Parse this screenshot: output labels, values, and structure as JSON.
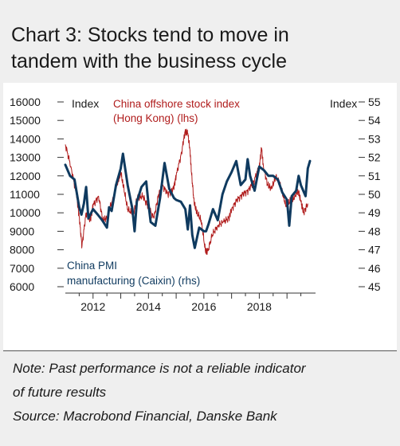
{
  "title_line1": "Chart 3: Stocks tend to move in",
  "title_line2": "tandem with the business cycle",
  "note_line1": "Note: Past performance is not a reliable indicator",
  "note_line2": "of future results",
  "source": "Source: Macrobond Financial, Danske Bank",
  "colors": {
    "stock": "#b01c1c",
    "pmi": "#0f3a5f",
    "background": "#efefef"
  },
  "chart_data": {
    "type": "line",
    "title": "",
    "left_axis_label": "Index",
    "right_axis_label": "Index",
    "left_ylim": [
      6000,
      16000
    ],
    "right_ylim": [
      45,
      55
    ],
    "left_ticks": [
      "16000",
      "15000",
      "14000",
      "13000",
      "12000",
      "11000",
      "10000",
      "9000",
      "8000",
      "7000",
      "6000"
    ],
    "right_ticks": [
      "55",
      "54",
      "53",
      "52",
      "51",
      "50",
      "49",
      "48",
      "47",
      "46",
      "45"
    ],
    "x_ticks": [
      "2012",
      "2014",
      "2016",
      "2018"
    ],
    "grid": false,
    "series": [
      {
        "name": "China offshore stock index (Hong Kong) (lhs)",
        "name_line1": "China offshore stock index",
        "name_line2": "(Hong Kong) (lhs)",
        "axis": "left",
        "x": [
          2011.0,
          2011.2,
          2011.4,
          2011.5,
          2011.6,
          2011.75,
          2011.9,
          2012.0,
          2012.2,
          2012.35,
          2012.5,
          2012.7,
          2012.9,
          2013.0,
          2013.1,
          2013.25,
          2013.45,
          2013.6,
          2013.8,
          2014.0,
          2014.2,
          2014.35,
          2014.5,
          2014.7,
          2014.9,
          2015.0,
          2015.2,
          2015.32,
          2015.42,
          2015.5,
          2015.55,
          2015.65,
          2015.75,
          2015.9,
          2016.05,
          2016.12,
          2016.3,
          2016.5,
          2016.7,
          2016.9,
          2017.0,
          2017.2,
          2017.4,
          2017.6,
          2017.8,
          2018.0,
          2018.08,
          2018.15,
          2018.3,
          2018.45,
          2018.6,
          2018.8,
          2018.95,
          2019.1,
          2019.25,
          2019.4,
          2019.5,
          2019.6,
          2019.75
        ],
        "y": [
          13700,
          12500,
          11000,
          9800,
          8200,
          10000,
          9600,
          10400,
          10900,
          9600,
          9700,
          10700,
          11700,
          12200,
          11400,
          10200,
          9900,
          10800,
          10900,
          10300,
          9700,
          10900,
          11500,
          11000,
          11300,
          12000,
          13300,
          14400,
          14300,
          13400,
          12200,
          10500,
          10000,
          9600,
          8000,
          7800,
          8800,
          9300,
          9500,
          9700,
          10200,
          10700,
          11000,
          11200,
          11700,
          12500,
          13500,
          12500,
          11500,
          11300,
          12000,
          11300,
          10400,
          10600,
          10800,
          11200,
          10600,
          10000,
          10500
        ]
      },
      {
        "name": "China PMI manufacturing (Caixin) (rhs)",
        "name_line1": "China PMI",
        "name_line2": "manufacturing (Caixin) (rhs)",
        "axis": "right",
        "x": [
          2011.0,
          2011.17,
          2011.33,
          2011.5,
          2011.58,
          2011.67,
          2011.75,
          2011.83,
          2012.0,
          2012.17,
          2012.33,
          2012.5,
          2012.58,
          2012.67,
          2012.83,
          2013.0,
          2013.08,
          2013.25,
          2013.42,
          2013.5,
          2013.58,
          2013.75,
          2013.92,
          2014.0,
          2014.08,
          2014.25,
          2014.42,
          2014.58,
          2014.75,
          2014.92,
          2015.0,
          2015.17,
          2015.33,
          2015.42,
          2015.5,
          2015.58,
          2015.67,
          2015.83,
          2016.0,
          2016.08,
          2016.17,
          2016.33,
          2016.5,
          2016.67,
          2016.83,
          2017.0,
          2017.17,
          2017.33,
          2017.5,
          2017.58,
          2017.67,
          2017.83,
          2018.0,
          2018.17,
          2018.33,
          2018.5,
          2018.67,
          2018.83,
          2019.0,
          2019.08,
          2019.17,
          2019.33,
          2019.42,
          2019.5,
          2019.67,
          2019.75,
          2019.83
        ],
        "y": [
          51.6,
          51.0,
          50.8,
          49.3,
          48.9,
          49.5,
          50.4,
          48.7,
          49.2,
          48.9,
          48.6,
          48.2,
          49.3,
          49.1,
          50.5,
          51.4,
          52.2,
          50.5,
          49.2,
          48.0,
          49.6,
          50.4,
          50.7,
          49.5,
          48.5,
          48.3,
          49.8,
          51.7,
          50.3,
          49.8,
          49.7,
          49.6,
          49.2,
          48.1,
          49.4,
          47.8,
          47.1,
          48.2,
          48.0,
          48.0,
          48.4,
          49.2,
          48.6,
          50.0,
          50.7,
          51.2,
          51.8,
          50.5,
          50.8,
          51.9,
          51.0,
          50.2,
          51.5,
          51.3,
          51.0,
          51.0,
          50.8,
          50.1,
          49.7,
          48.3,
          49.9,
          50.2,
          51.0,
          50.5,
          49.9,
          51.4,
          51.8
        ]
      }
    ]
  }
}
